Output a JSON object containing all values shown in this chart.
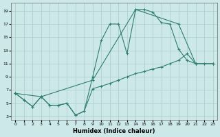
{
  "xlabel": "Humidex (Indice chaleur)",
  "bg_color": "#cce8e8",
  "grid_color": "#aacccc",
  "line_color": "#2e7d6e",
  "xlim": [
    -0.5,
    23.5
  ],
  "ylim": [
    2.5,
    20.2
  ],
  "xticks": [
    0,
    1,
    2,
    3,
    4,
    5,
    6,
    7,
    8,
    9,
    10,
    11,
    12,
    13,
    14,
    15,
    16,
    17,
    18,
    19,
    20,
    21,
    22,
    23
  ],
  "yticks": [
    3,
    5,
    7,
    9,
    11,
    13,
    15,
    17,
    19
  ],
  "line1_x": [
    0,
    1,
    2,
    3,
    4,
    5,
    6,
    7,
    8,
    9,
    10,
    11,
    12,
    13,
    14,
    15,
    16,
    17,
    18,
    19,
    20,
    21
  ],
  "line1_y": [
    6.5,
    5.5,
    4.5,
    6.0,
    4.7,
    4.7,
    5.0,
    3.2,
    3.8,
    9.0,
    14.5,
    17.0,
    17.0,
    12.5,
    19.2,
    19.2,
    18.8,
    17.2,
    17.0,
    13.2,
    11.5,
    11.0
  ],
  "line2_x": [
    0,
    3,
    9,
    14,
    19,
    21,
    23
  ],
  "line2_y": [
    6.5,
    6.0,
    8.5,
    19.2,
    17.0,
    11.0,
    11.0
  ],
  "line3_x": [
    0,
    1,
    2,
    3,
    4,
    5,
    6,
    7,
    8,
    9,
    10,
    11,
    12,
    13,
    14,
    15,
    16,
    17,
    18,
    19,
    20,
    21,
    22,
    23
  ],
  "line3_y": [
    6.5,
    5.5,
    4.5,
    6.0,
    4.7,
    4.7,
    5.0,
    3.2,
    3.8,
    7.2,
    7.6,
    8.0,
    8.5,
    9.0,
    9.5,
    9.8,
    10.2,
    10.5,
    11.0,
    11.5,
    12.5,
    11.0,
    11.0,
    11.0
  ]
}
